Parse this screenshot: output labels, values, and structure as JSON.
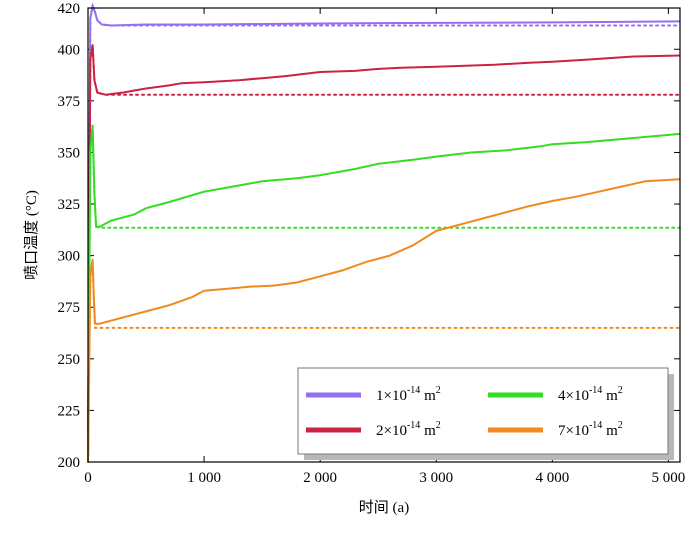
{
  "chart_data": {
    "type": "line",
    "xlabel": "时间 (a)",
    "ylabel": "喷口温度 (°C)",
    "xlim": [
      0,
      5100
    ],
    "ylim": [
      200,
      420
    ],
    "xticks": [
      0,
      1000,
      2000,
      3000,
      4000,
      5000
    ],
    "xtick_labels": [
      "0",
      "1 000",
      "2 000",
      "3 000",
      "4 000",
      "5 000"
    ],
    "yticks": [
      200,
      225,
      250,
      275,
      300,
      325,
      350,
      375,
      400,
      420
    ],
    "ytick_labels": [
      "200",
      "225",
      "250",
      "275",
      "300",
      "325",
      "350",
      "375",
      "400",
      "420"
    ],
    "legend": {
      "position": "bottom-right",
      "columns": 2
    },
    "series": [
      {
        "name": "1×10-14 m2",
        "label_mantissa": "1×10",
        "label_exp": "-14",
        "label_unit": " m",
        "label_unit_exp": "2",
        "color": "#9370f0",
        "solid": [
          [
            0,
            200
          ],
          [
            20,
            415
          ],
          [
            40,
            421
          ],
          [
            60,
            418
          ],
          [
            80,
            414
          ],
          [
            120,
            412
          ],
          [
            200,
            411.5
          ],
          [
            500,
            412
          ],
          [
            1000,
            412
          ],
          [
            2000,
            412.5
          ],
          [
            3000,
            412.8
          ],
          [
            4000,
            413
          ],
          [
            5100,
            413.5
          ]
        ],
        "dotted": [
          [
            0,
            200
          ],
          [
            20,
            415
          ],
          [
            40,
            421
          ],
          [
            60,
            418
          ],
          [
            80,
            414
          ],
          [
            120,
            412
          ],
          [
            200,
            411.5
          ],
          [
            5100,
            411.5
          ]
        ]
      },
      {
        "name": "2×10-14 m2",
        "label_mantissa": "2×10",
        "label_exp": "-14",
        "label_unit": " m",
        "label_unit_exp": "2",
        "color": "#cc2244",
        "solid": [
          [
            0,
            200
          ],
          [
            20,
            395
          ],
          [
            40,
            402
          ],
          [
            55,
            385
          ],
          [
            80,
            379
          ],
          [
            150,
            378
          ],
          [
            300,
            379
          ],
          [
            400,
            380
          ],
          [
            500,
            381
          ],
          [
            700,
            382.5
          ],
          [
            800,
            383.5
          ],
          [
            1000,
            384
          ],
          [
            1300,
            385
          ],
          [
            1500,
            386
          ],
          [
            1700,
            387
          ],
          [
            2000,
            389
          ],
          [
            2300,
            389.5
          ],
          [
            2500,
            390.5
          ],
          [
            2700,
            391
          ],
          [
            3000,
            391.5
          ],
          [
            3500,
            392.5
          ],
          [
            3800,
            393.5
          ],
          [
            4000,
            394
          ],
          [
            4300,
            395
          ],
          [
            4700,
            396.5
          ],
          [
            5100,
            397
          ]
        ],
        "dotted": [
          [
            0,
            200
          ],
          [
            20,
            395
          ],
          [
            40,
            402
          ],
          [
            55,
            385
          ],
          [
            80,
            379
          ],
          [
            150,
            378
          ],
          [
            5100,
            378
          ]
        ]
      },
      {
        "name": "4×10-14 m2",
        "label_mantissa": "4×10",
        "label_exp": "-14",
        "label_unit": " m",
        "label_unit_exp": "2",
        "color": "#33dd22",
        "solid": [
          [
            0,
            200
          ],
          [
            20,
            350
          ],
          [
            40,
            363
          ],
          [
            55,
            330
          ],
          [
            70,
            314
          ],
          [
            100,
            314
          ],
          [
            200,
            317
          ],
          [
            400,
            320
          ],
          [
            500,
            323
          ],
          [
            700,
            326
          ],
          [
            1000,
            331
          ],
          [
            1300,
            334
          ],
          [
            1500,
            336
          ],
          [
            1800,
            337.5
          ],
          [
            2000,
            339
          ],
          [
            2300,
            342
          ],
          [
            2500,
            344.5
          ],
          [
            2800,
            346.5
          ],
          [
            3000,
            348
          ],
          [
            3300,
            350
          ],
          [
            3600,
            351
          ],
          [
            3900,
            353
          ],
          [
            4000,
            354
          ],
          [
            4300,
            355
          ],
          [
            4600,
            356.5
          ],
          [
            4700,
            357
          ],
          [
            5100,
            359
          ]
        ],
        "dotted": [
          [
            0,
            200
          ],
          [
            20,
            350
          ],
          [
            40,
            363
          ],
          [
            55,
            330
          ],
          [
            70,
            314
          ],
          [
            100,
            313.5
          ],
          [
            5100,
            313.5
          ]
        ]
      },
      {
        "name": "7×10-14 m2",
        "label_mantissa": "7×10",
        "label_exp": "-14",
        "label_unit": " m",
        "label_unit_exp": "2",
        "color": "#f08a20",
        "solid": [
          [
            0,
            200
          ],
          [
            20,
            290
          ],
          [
            40,
            298
          ],
          [
            50,
            280
          ],
          [
            60,
            267
          ],
          [
            100,
            267
          ],
          [
            300,
            270
          ],
          [
            500,
            273
          ],
          [
            700,
            276
          ],
          [
            900,
            280
          ],
          [
            1000,
            283
          ],
          [
            1200,
            284
          ],
          [
            1400,
            285
          ],
          [
            1600,
            285.5
          ],
          [
            1800,
            287
          ],
          [
            2000,
            290
          ],
          [
            2200,
            293
          ],
          [
            2400,
            297
          ],
          [
            2600,
            300
          ],
          [
            2800,
            305
          ],
          [
            3000,
            312
          ],
          [
            3200,
            315
          ],
          [
            3400,
            318
          ],
          [
            3600,
            321
          ],
          [
            3800,
            324
          ],
          [
            4000,
            326.5
          ],
          [
            4200,
            328.5
          ],
          [
            4400,
            331
          ],
          [
            4600,
            333.5
          ],
          [
            4800,
            336
          ],
          [
            5100,
            337
          ]
        ],
        "dotted": [
          [
            0,
            200
          ],
          [
            20,
            290
          ],
          [
            40,
            298
          ],
          [
            50,
            280
          ],
          [
            60,
            265
          ],
          [
            100,
            265
          ],
          [
            5100,
            265
          ]
        ]
      }
    ]
  }
}
